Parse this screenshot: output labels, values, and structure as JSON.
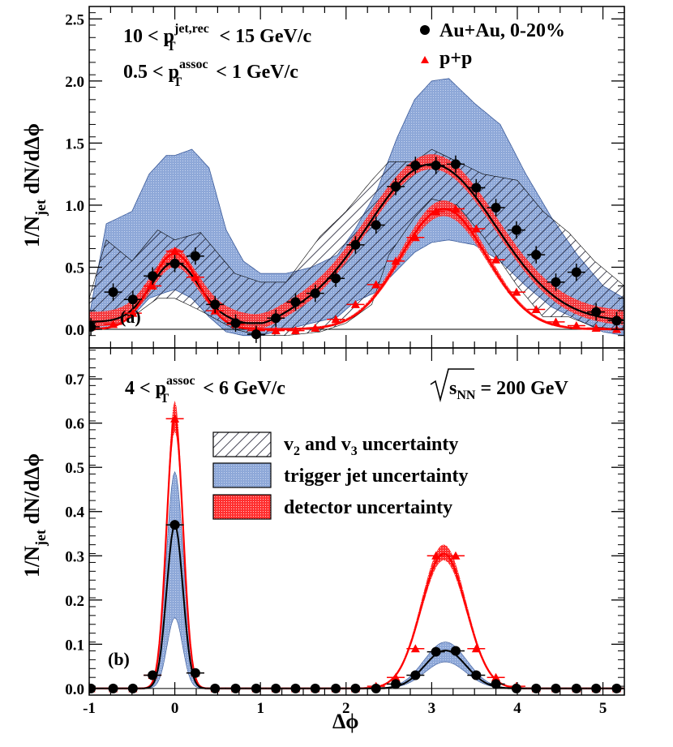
{
  "chart_data": [
    {
      "type": "scatter",
      "panel": "a",
      "panel_label": "(a)",
      "ylabel": "1/N",
      "ylabel_sub": "jet",
      "ylabel_rest": " dN/dΔϕ",
      "xlim": [
        -1,
        5.25
      ],
      "ylim": [
        -0.15,
        2.6
      ],
      "yticks": [
        "0.0",
        "0.5",
        "1.0",
        "1.5",
        "2.0",
        "2.5"
      ],
      "ytick_values": [
        0,
        0.5,
        1.0,
        1.5,
        2.0,
        2.5
      ],
      "annotation_1": {
        "a": "10 < p",
        "sup": "jet,rec",
        "sub": "T",
        "b": " < 15 GeV/c"
      },
      "annotation_2": {
        "a": "0.5 < p",
        "sup": "assoc",
        "sub": "T",
        "b": " < 1 GeV/c"
      },
      "legend_auau": "Au+Au, 0-20%",
      "legend_pp": "p+p",
      "series": [
        {
          "name": "Au+Au, 0-20%",
          "color": "#000000",
          "x": [
            -0.98,
            -0.72,
            -0.49,
            -0.26,
            0.0,
            0.24,
            0.47,
            0.71,
            0.95,
            1.18,
            1.41,
            1.64,
            1.88,
            2.11,
            2.35,
            2.58,
            2.81,
            3.05,
            3.28,
            3.52,
            3.75,
            3.99,
            4.22,
            4.45,
            4.69,
            4.92,
            5.16
          ],
          "y": [
            0.02,
            0.3,
            0.24,
            0.43,
            0.53,
            0.59,
            0.2,
            0.05,
            -0.04,
            0.09,
            0.22,
            0.29,
            0.41,
            0.68,
            0.84,
            1.15,
            1.32,
            1.32,
            1.33,
            1.14,
            0.98,
            0.8,
            0.6,
            0.38,
            0.46,
            0.14,
            0.07
          ]
        },
        {
          "name": "p+p",
          "color": "#ff0000",
          "x": [
            -0.98,
            -0.72,
            -0.49,
            -0.26,
            0.0,
            0.24,
            0.47,
            0.71,
            0.95,
            1.18,
            1.41,
            1.64,
            1.88,
            2.11,
            2.35,
            2.58,
            2.81,
            3.05,
            3.28,
            3.52,
            3.75,
            3.99,
            4.22,
            4.45,
            4.69,
            4.92,
            5.16
          ],
          "y": [
            0.02,
            0.04,
            0.13,
            0.35,
            0.63,
            0.42,
            0.15,
            0.04,
            -0.01,
            -0.01,
            -0.01,
            0.01,
            0.08,
            0.2,
            0.36,
            0.55,
            0.74,
            0.95,
            0.97,
            0.81,
            0.56,
            0.3,
            0.16,
            0.06,
            0.03,
            0.01,
            0.0
          ]
        }
      ]
    },
    {
      "type": "scatter",
      "panel": "b",
      "panel_label": "(b)",
      "xlabel": "Δϕ",
      "ylabel": "1/N",
      "ylabel_sub": "jet",
      "ylabel_rest": " dN/dΔϕ",
      "xlim": [
        -1,
        5.25
      ],
      "ylim": [
        -0.015,
        0.77
      ],
      "xticks": [
        "-1",
        "0",
        "1",
        "2",
        "3",
        "4",
        "5"
      ],
      "xtick_values": [
        -1,
        0,
        1,
        2,
        3,
        4,
        5
      ],
      "yticks": [
        "0.0",
        "0.1",
        "0.2",
        "0.3",
        "0.4",
        "0.5",
        "0.6",
        "0.7"
      ],
      "ytick_values": [
        0,
        0.1,
        0.2,
        0.3,
        0.4,
        0.5,
        0.6,
        0.7
      ],
      "annotation_1": {
        "a": "4 < p",
        "sup": "assoc",
        "sub": "T",
        "b": " < 6 GeV/c"
      },
      "annotation_energy": {
        "s": "s",
        "sub": "NN",
        "rest": " = 200 GeV"
      },
      "legend": [
        {
          "kind": "hatch",
          "label_a": "v",
          "sub1": "2",
          "label_b": " and v",
          "sub2": "3",
          "label_c": " uncertainty"
        },
        {
          "kind": "blue",
          "label": "trigger jet uncertainty"
        },
        {
          "kind": "red",
          "label": "detector uncertainty"
        }
      ],
      "series": [
        {
          "name": "Au+Au, 0-20%",
          "color": "#000000",
          "x": [
            -0.98,
            -0.72,
            -0.49,
            -0.26,
            0.0,
            0.24,
            0.47,
            0.71,
            0.95,
            1.18,
            1.41,
            1.64,
            1.88,
            2.11,
            2.35,
            2.58,
            2.81,
            3.05,
            3.28,
            3.52,
            3.75,
            3.99,
            4.22,
            4.45,
            4.69,
            4.92,
            5.16
          ],
          "y": [
            0.0,
            0.0,
            0.0,
            0.03,
            0.37,
            0.035,
            0.0,
            0.0,
            0.0,
            0.0,
            0.0,
            0.0,
            0.0,
            0.0,
            0.0,
            0.01,
            0.03,
            0.083,
            0.085,
            0.03,
            0.01,
            0.0,
            0.0,
            0.0,
            0.0,
            0.0,
            0.0
          ]
        },
        {
          "name": "p+p",
          "color": "#ff0000",
          "x": [
            -0.98,
            -0.72,
            -0.49,
            -0.26,
            0.0,
            0.24,
            0.47,
            0.71,
            0.95,
            1.18,
            1.41,
            1.64,
            1.88,
            2.11,
            2.35,
            2.58,
            2.81,
            3.05,
            3.28,
            3.52,
            3.75,
            3.99,
            4.22,
            4.45,
            4.69,
            4.92,
            5.16
          ],
          "y": [
            0.0,
            0.0,
            0.0,
            0.03,
            0.61,
            0.035,
            0.0,
            0.0,
            0.0,
            0.0,
            0.0,
            0.0,
            0.0,
            0.0,
            0.005,
            0.025,
            0.09,
            0.3,
            0.3,
            0.09,
            0.025,
            0.005,
            0.0,
            0.0,
            0.0,
            0.0,
            0.0
          ]
        }
      ]
    }
  ]
}
